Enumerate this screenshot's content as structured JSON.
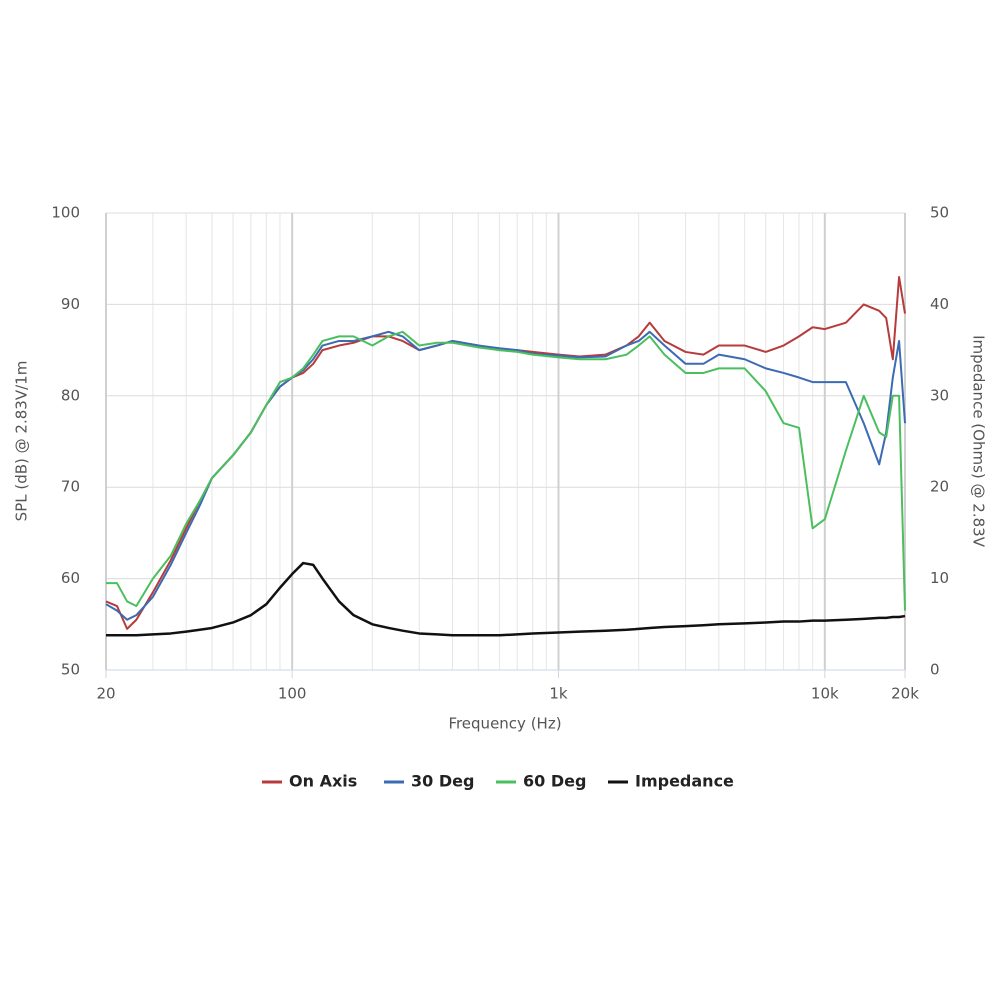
{
  "chart_data": {
    "type": "line",
    "x_label": "Frequency (Hz)",
    "y_label": "SPL (dB) @ 2.83V/1m",
    "y2_label": "Impedance (Ohms) @ 2.83V",
    "x_log": true,
    "grid": true,
    "legend": "bottom",
    "xlim": [
      20,
      20000
    ],
    "xticks": [
      20,
      100,
      {
        "value": 1000,
        "label": "1k"
      },
      {
        "value": 10000,
        "label": "10k"
      },
      {
        "value": 20000,
        "label": "20k"
      }
    ],
    "xgrid_minor": [
      30,
      40,
      50,
      60,
      70,
      80,
      90,
      200,
      300,
      400,
      500,
      600,
      700,
      800,
      900,
      2000,
      3000,
      4000,
      5000,
      6000,
      7000,
      8000,
      9000
    ],
    "ylim": [
      50,
      100
    ],
    "yticks": [
      50,
      60,
      70,
      80,
      90,
      100
    ],
    "y2lim": [
      0,
      50
    ],
    "y2ticks": [
      0,
      10,
      20,
      30,
      40,
      50
    ],
    "x": [
      20,
      22,
      24,
      26,
      30,
      35,
      40,
      45,
      50,
      60,
      70,
      80,
      90,
      100,
      110,
      120,
      130,
      150,
      170,
      200,
      230,
      260,
      300,
      350,
      400,
      500,
      600,
      700,
      800,
      1000,
      1200,
      1500,
      1800,
      2000,
      2200,
      2500,
      3000,
      3500,
      4000,
      5000,
      6000,
      7000,
      8000,
      9000,
      10000,
      12000,
      14000,
      16000,
      17000,
      18000,
      19000,
      20000
    ],
    "series": [
      {
        "name": "On Axis",
        "color": "#b83b3b",
        "values": [
          57.5,
          57,
          54.5,
          55.5,
          58.5,
          62,
          65.5,
          68.5,
          71,
          73.5,
          76,
          79,
          81,
          82,
          82.5,
          83.5,
          85,
          85.5,
          85.8,
          86.5,
          86.5,
          86,
          85,
          85.5,
          86,
          85.5,
          85,
          85,
          84.8,
          84.5,
          84.3,
          84.5,
          85.5,
          86.5,
          88,
          86,
          84.8,
          84.5,
          85.5,
          85.5,
          84.8,
          85.5,
          86.5,
          87.5,
          87.3,
          88,
          90,
          89.3,
          88.5,
          84,
          93,
          89
        ]
      },
      {
        "name": "30 Deg",
        "color": "#3a6bb3",
        "values": [
          57.2,
          56.5,
          55.5,
          56,
          58,
          61.5,
          65,
          68,
          71,
          73.5,
          76,
          79,
          81,
          82,
          82.8,
          84,
          85.5,
          86,
          86,
          86.5,
          87,
          86.5,
          85,
          85.5,
          86,
          85.5,
          85.2,
          85,
          84.6,
          84.4,
          84.2,
          84.3,
          85.5,
          86,
          87,
          85.5,
          83.5,
          83.5,
          84.5,
          84,
          83,
          82.5,
          82,
          81.5,
          81.5,
          81.5,
          77,
          72.5,
          76,
          82,
          86,
          77
        ]
      },
      {
        "name": "60 Deg",
        "color": "#4bbf5e",
        "values": [
          59.5,
          59.5,
          57.5,
          57,
          60,
          62.5,
          66,
          68.5,
          71,
          73.5,
          76,
          79,
          81.5,
          82,
          83,
          84.5,
          86,
          86.5,
          86.5,
          85.5,
          86.5,
          87,
          85.5,
          85.8,
          85.8,
          85.3,
          85,
          84.8,
          84.5,
          84.2,
          84,
          84,
          84.5,
          85.5,
          86.5,
          84.5,
          82.5,
          82.5,
          83,
          83,
          80.5,
          77,
          76.5,
          65.5,
          66.5,
          74,
          80,
          76,
          75.5,
          80,
          80,
          56.5
        ]
      },
      {
        "name": "Impedance",
        "color": "#111111",
        "axis": "y2",
        "values": [
          3.8,
          3.8,
          3.8,
          3.8,
          3.9,
          4.0,
          4.2,
          4.4,
          4.6,
          5.2,
          6,
          7.2,
          9,
          10.5,
          11.7,
          11.5,
          10,
          7.5,
          6,
          5,
          4.6,
          4.3,
          4,
          3.9,
          3.8,
          3.8,
          3.8,
          3.9,
          4,
          4.1,
          4.2,
          4.3,
          4.4,
          4.5,
          4.6,
          4.7,
          4.8,
          4.9,
          5,
          5.1,
          5.2,
          5.3,
          5.3,
          5.4,
          5.4,
          5.5,
          5.6,
          5.7,
          5.7,
          5.8,
          5.8,
          5.9
        ]
      }
    ]
  }
}
